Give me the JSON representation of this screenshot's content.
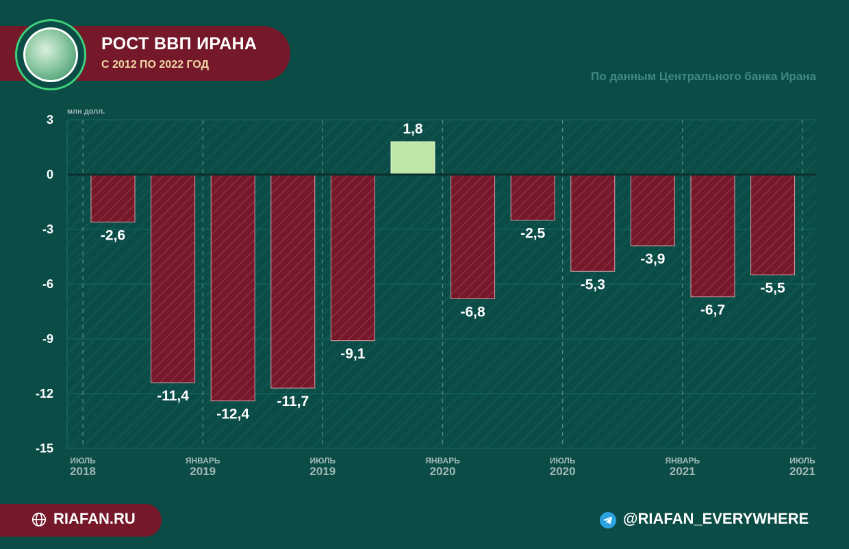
{
  "header": {
    "title": "РОСТ ВВП ИРАНА",
    "subtitle": "С 2012 ПО 2022 ГОД",
    "source": "По данным Центрального банка Ирана"
  },
  "footer": {
    "site": "RIAFAN.RU",
    "telegram": "@RIAFAN_EVERYWHERE"
  },
  "colors": {
    "background": "#0c4c47",
    "negative_bar": "#74182a",
    "positive_bar": "#bfe6a6",
    "accent_ring": "#3fd07a"
  },
  "chart_data": {
    "type": "bar",
    "unit_label": "млн долл.",
    "ylim": [
      -15,
      3
    ],
    "yticks": [
      3,
      0,
      -3,
      -6,
      -9,
      -12,
      -15
    ],
    "values": [
      -2.6,
      -11.4,
      -12.4,
      -11.7,
      -9.1,
      1.8,
      -6.8,
      -2.5,
      -5.3,
      -3.9,
      -6.7,
      -5.5
    ],
    "value_labels": [
      "-2,6",
      "-11,4",
      "-12,4",
      "-11,7",
      "-9,1",
      "1,8",
      "-6,8",
      "-2,5",
      "-5,3",
      "-3,9",
      "-6,7",
      "-5,5"
    ],
    "xticks": [
      {
        "month": "ИЮЛЬ",
        "year": "2018"
      },
      {
        "month": "ЯНВАРЬ",
        "year": "2019"
      },
      {
        "month": "ИЮЛЬ",
        "year": "2019"
      },
      {
        "month": "ЯНВАРЬ",
        "year": "2020"
      },
      {
        "month": "ИЮЛЬ",
        "year": "2020"
      },
      {
        "month": "ЯНВАРЬ",
        "year": "2021"
      },
      {
        "month": "ИЮЛЬ",
        "year": "2021"
      }
    ],
    "grid": true
  }
}
